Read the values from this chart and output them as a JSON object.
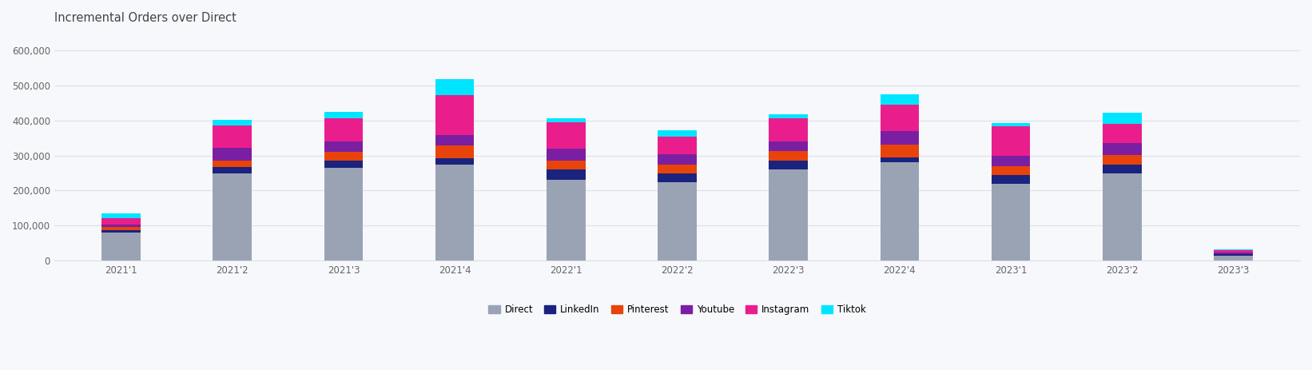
{
  "categories": [
    "2021'1",
    "2021'2",
    "2021'3",
    "2021'4",
    "2022'1",
    "2022'2",
    "2022'3",
    "2022'4",
    "2023'1",
    "2023'2",
    "2023'3"
  ],
  "series": {
    "Direct": [
      80000,
      250000,
      265000,
      275000,
      230000,
      225000,
      260000,
      280000,
      220000,
      248000,
      15000
    ],
    "LinkedIn": [
      8000,
      18000,
      20000,
      18000,
      30000,
      25000,
      25000,
      15000,
      25000,
      25000,
      3000
    ],
    "Pinterest": [
      8000,
      18000,
      25000,
      35000,
      25000,
      25000,
      28000,
      35000,
      25000,
      28000,
      2000
    ],
    "Youtube": [
      8000,
      35000,
      30000,
      30000,
      35000,
      28000,
      28000,
      40000,
      28000,
      35000,
      3000
    ],
    "Instagram": [
      18000,
      65000,
      65000,
      115000,
      75000,
      50000,
      65000,
      75000,
      85000,
      55000,
      8000
    ],
    "Tiktok": [
      12000,
      15000,
      20000,
      45000,
      10000,
      20000,
      12000,
      30000,
      10000,
      30000,
      2000
    ]
  },
  "colors": {
    "Direct": "#9aa3b3",
    "LinkedIn": "#1a237e",
    "Pinterest": "#e8430a",
    "Youtube": "#7b1fa2",
    "Instagram": "#e91e8c",
    "Tiktok": "#00e5ff"
  },
  "title": "Incremental Orders over Direct",
  "ylim": [
    0,
    650000
  ],
  "yticks": [
    0,
    100000,
    200000,
    300000,
    400000,
    500000,
    600000
  ],
  "ytick_labels": [
    "0",
    "100,000",
    "200,000",
    "300,000",
    "400,000",
    "500,000",
    "600,000"
  ],
  "bar_width": 0.35,
  "background_color": "#f7f8fc",
  "plot_bg_color": "#f7f8fc",
  "grid_color": "#dde0e6",
  "title_fontsize": 10.5,
  "tick_fontsize": 8.5,
  "legend_fontsize": 8.5
}
